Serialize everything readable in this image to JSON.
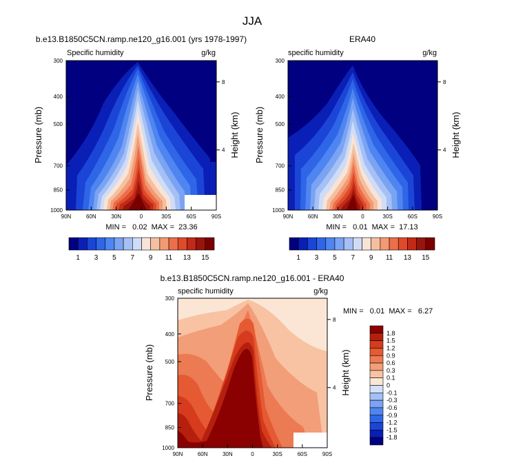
{
  "figure": {
    "title": "JJA"
  },
  "colors": {
    "abs_scale": [
      "#000080",
      "#0a1fb5",
      "#1b45d6",
      "#2f66e8",
      "#4f85f0",
      "#7aa3f3",
      "#a4c0f5",
      "#cfdcf7",
      "#f8e4d6",
      "#f5c0a0",
      "#f29a73",
      "#ec6e4a",
      "#de4a2a",
      "#c22a17",
      "#99150c",
      "#7a0000"
    ],
    "diff_scale": [
      "#000080",
      "#0a1fb5",
      "#1b45d6",
      "#2f66e8",
      "#4f85f0",
      "#7aa3f3",
      "#a4c0f5",
      "#d3e1f8",
      "#fbe6d6",
      "#f7c3a3",
      "#f29e78",
      "#ec7a52",
      "#e55a32",
      "#d53b1c",
      "#b5200e",
      "#8b0000"
    ]
  },
  "panel_model": {
    "title": "b.e13.B1850C5CN.ramp.ne120_g16.001 (yrs 1978-1997)",
    "left_label": "Specific humidity",
    "right_label": "g/kg",
    "stats": "MIN =   0.02  MAX =  23.36"
  },
  "panel_obs": {
    "title": "ERA40",
    "left_label": "specific humidity",
    "right_label": "g/kg",
    "stats": "MIN =   0.01  MAX =  17.13"
  },
  "panel_diff": {
    "title": "b.e13.B1850C5CN.ramp.ne120_g16.001 - ERA40",
    "left_label": "specific humidity",
    "right_label": "g/kg",
    "stats": "MIN =   0.01  MAX =   6.27"
  },
  "axes": {
    "ylabel": "Pressure (mb)",
    "ylabel_right": "Height (km)",
    "pressure_ticks": [
      "300",
      "400",
      "500",
      "700",
      "850",
      "1000"
    ],
    "lat_ticks": [
      "90N",
      "60N",
      "30N",
      "0",
      "30S",
      "60S",
      "90S"
    ],
    "height_ticks": [
      "8",
      "4"
    ]
  },
  "colorbar_abs_labels": [
    "1",
    "3",
    "5",
    "7",
    "9",
    "11",
    "13",
    "15"
  ],
  "colorbar_diff_labels": [
    "1.8",
    "1.5",
    "1.2",
    "0.9",
    "0.6",
    "0.3",
    "0.1",
    "0",
    "-0.1",
    "-0.3",
    "-0.6",
    "-0.9",
    "-1.2",
    "-1.5",
    "-1.8"
  ],
  "chart_data": [
    {
      "type": "heatmap",
      "title": "b.e13.B1850C5CN.ramp.ne120_g16.001 (yrs 1978-1997)",
      "xlabel": "",
      "ylabel": "Pressure (mb)",
      "ylabel_right": "Height (km)",
      "x_ticks": [
        "90N",
        "60N",
        "30N",
        "0",
        "30S",
        "60S",
        "90S"
      ],
      "y_ticks": [
        "300",
        "400",
        "500",
        "700",
        "850",
        "1000"
      ],
      "ylim": [
        1000,
        300
      ],
      "y_scale": "log",
      "levels": [
        1,
        2,
        3,
        4,
        5,
        6,
        7,
        8,
        9,
        10,
        11,
        12,
        13,
        14,
        15
      ],
      "units": "g/kg",
      "min": 0.02,
      "max": 23.36
    },
    {
      "type": "heatmap",
      "title": "ERA40",
      "xlabel": "",
      "ylabel": "Pressure (mb)",
      "ylabel_right": "Height (km)",
      "x_ticks": [
        "90N",
        "60N",
        "30N",
        "0",
        "30S",
        "60S",
        "90S"
      ],
      "y_ticks": [
        "300",
        "400",
        "500",
        "700",
        "850",
        "1000"
      ],
      "ylim": [
        1000,
        300
      ],
      "y_scale": "log",
      "levels": [
        1,
        2,
        3,
        4,
        5,
        6,
        7,
        8,
        9,
        10,
        11,
        12,
        13,
        14,
        15
      ],
      "units": "g/kg",
      "min": 0.01,
      "max": 17.13
    },
    {
      "type": "heatmap",
      "title": "b.e13.B1850C5CN.ramp.ne120_g16.001 - ERA40",
      "xlabel": "",
      "ylabel": "Pressure (mb)",
      "ylabel_right": "Height (km)",
      "x_ticks": [
        "90N",
        "60N",
        "30N",
        "0",
        "30S",
        "60S",
        "90S"
      ],
      "y_ticks": [
        "300",
        "400",
        "500",
        "700",
        "850",
        "1000"
      ],
      "ylim": [
        1000,
        300
      ],
      "y_scale": "log",
      "levels": [
        -1.8,
        -1.5,
        -1.2,
        -0.9,
        -0.6,
        -0.3,
        -0.1,
        0,
        0.1,
        0.3,
        0.6,
        0.9,
        1.2,
        1.5,
        1.8
      ],
      "units": "g/kg",
      "min": 0.01,
      "max": 6.27
    }
  ]
}
